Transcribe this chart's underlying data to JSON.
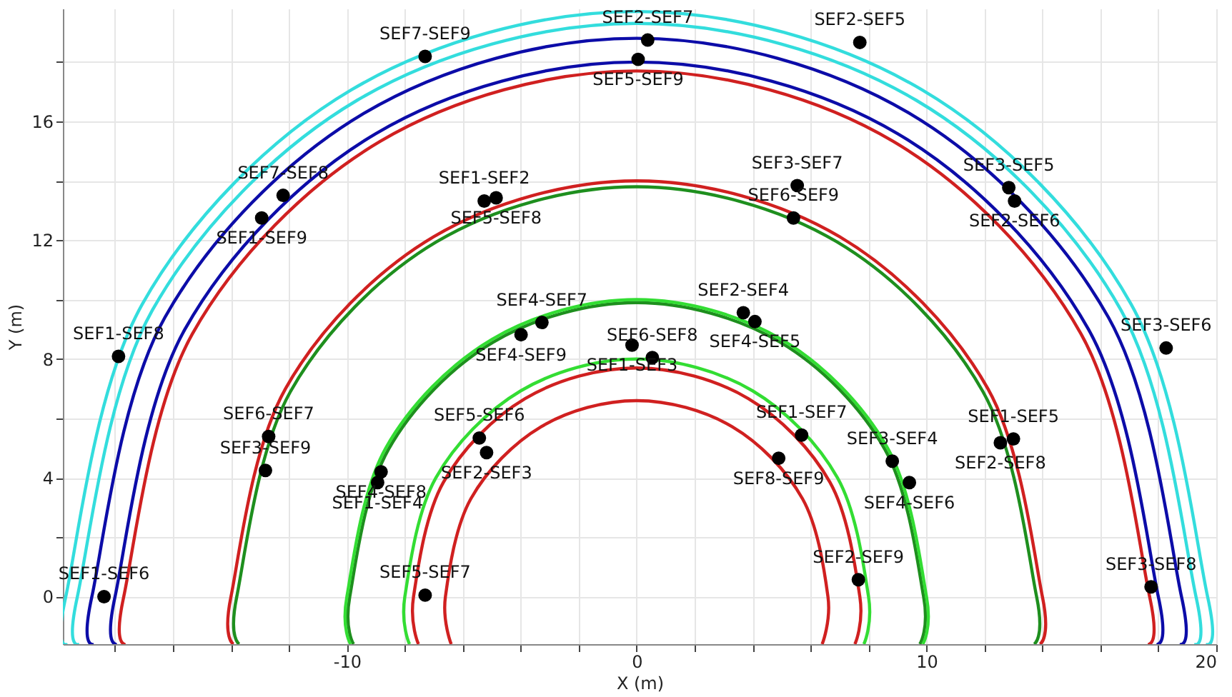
{
  "chart_data": {
    "type": "scatter",
    "xlabel": "X (m)",
    "ylabel": "Y (m)",
    "xlim": [
      -19.8,
      20
    ],
    "ylim": [
      -1.6,
      19.8
    ],
    "xticks": [
      {
        "value": -18,
        "label": null
      },
      {
        "value": -16,
        "label": null
      },
      {
        "value": -14,
        "label": null
      },
      {
        "value": -12,
        "label": null
      },
      -10,
      {
        "value": -8,
        "label": null
      },
      {
        "value": -6,
        "label": null
      },
      {
        "value": -4,
        "label": null
      },
      {
        "value": -2,
        "label": null
      },
      0,
      {
        "value": 2,
        "label": null
      },
      {
        "value": 4,
        "label": null
      },
      {
        "value": 6,
        "label": null
      },
      {
        "value": 8,
        "label": null
      },
      10,
      {
        "value": 12,
        "label": null
      },
      {
        "value": 14,
        "label": null
      },
      {
        "value": 16,
        "label": null
      },
      {
        "value": 18,
        "label": null
      },
      20
    ],
    "yticks": [
      0,
      {
        "value": 2,
        "label": null
      },
      4,
      {
        "value": 6,
        "label": null
      },
      8,
      {
        "value": 10,
        "label": null
      },
      12,
      {
        "value": 14,
        "label": null
      },
      16,
      {
        "value": 18,
        "label": null
      }
    ],
    "grid": true,
    "series": [
      {
        "type": "line",
        "color": "#d02020",
        "x": [
          6.4,
          6.6,
          5.72,
          3.3,
          0,
          -3.3,
          -5.72,
          -6.6,
          -6.4
        ],
        "values": [
          -1.6,
          0,
          3.3,
          5.72,
          6.6,
          5.72,
          3.3,
          0,
          -1.6
        ]
      },
      {
        "type": "line",
        "color": "#d02020",
        "x": [
          7.53,
          7.7,
          6.67,
          3.85,
          0,
          -3.85,
          -6.67,
          -7.7,
          -7.53
        ],
        "values": [
          -1.6,
          0,
          3.85,
          6.67,
          7.7,
          6.67,
          3.85,
          0,
          -1.6
        ]
      },
      {
        "type": "line",
        "color": "#33dd33",
        "x": [
          7.84,
          8.0,
          6.93,
          4.0,
          0,
          -4.0,
          -6.93,
          -8.0,
          -7.84
        ],
        "values": [
          -1.6,
          0,
          4.0,
          6.93,
          8.0,
          6.93,
          4.0,
          0,
          -1.6
        ]
      },
      {
        "type": "line",
        "color": "#1e8f1e",
        "x": [
          9.77,
          9.9,
          8.57,
          4.95,
          0,
          -4.95,
          -8.57,
          -9.9,
          -9.77
        ],
        "values": [
          -1.6,
          0,
          4.95,
          8.57,
          9.9,
          8.57,
          4.95,
          0,
          -1.6
        ]
      },
      {
        "type": "line",
        "color": "#33dd33",
        "x": [
          9.87,
          10.0,
          8.66,
          5.0,
          0,
          -5.0,
          -8.66,
          -10.0,
          -9.87
        ],
        "values": [
          -1.6,
          0,
          5.0,
          8.66,
          10.0,
          8.66,
          5.0,
          0,
          -1.6
        ]
      },
      {
        "type": "line",
        "color": "#1e8f1e",
        "x": [
          13.71,
          13.8,
          11.95,
          6.9,
          0,
          -6.9,
          -11.95,
          -13.8,
          -13.71
        ],
        "values": [
          -1.6,
          0,
          6.9,
          11.95,
          13.8,
          11.95,
          6.9,
          0,
          -1.6
        ]
      },
      {
        "type": "line",
        "color": "#d02020",
        "x": [
          13.91,
          14.0,
          12.12,
          7.0,
          0,
          -7.0,
          -12.12,
          -14.0,
          -13.91
        ],
        "values": [
          -1.6,
          0,
          7.0,
          12.12,
          14.0,
          12.12,
          7.0,
          0,
          -1.6
        ]
      },
      {
        "type": "line",
        "color": "#d02020",
        "x": [
          17.63,
          17.7,
          15.33,
          8.85,
          0,
          -8.85,
          -15.33,
          -17.7,
          -17.63
        ],
        "values": [
          -1.6,
          0,
          8.85,
          15.33,
          17.7,
          15.33,
          8.85,
          0,
          -1.6
        ]
      },
      {
        "type": "line",
        "color": "#0c0ca8",
        "x": [
          17.93,
          18.0,
          15.59,
          9.0,
          0,
          -9.0,
          -15.59,
          -18.0,
          -17.93
        ],
        "values": [
          -1.6,
          0,
          9.0,
          15.59,
          18.0,
          15.59,
          9.0,
          0,
          -1.6
        ]
      },
      {
        "type": "line",
        "color": "#0c0ca8",
        "x": [
          18.73,
          18.8,
          16.28,
          9.4,
          0,
          -9.4,
          -16.28,
          -18.8,
          -18.73
        ],
        "values": [
          -1.6,
          0,
          9.4,
          16.28,
          18.8,
          16.28,
          9.4,
          0,
          -1.6
        ]
      },
      {
        "type": "line",
        "color": "#33dddd",
        "x": [
          19.23,
          19.3,
          16.71,
          9.65,
          0,
          -9.65,
          -16.71,
          -19.3,
          -19.23
        ],
        "values": [
          -1.6,
          0,
          9.65,
          16.71,
          19.3,
          16.71,
          9.65,
          0,
          -1.6
        ]
      },
      {
        "type": "line",
        "color": "#33dddd",
        "x": [
          19.63,
          19.7,
          17.06,
          9.85,
          0,
          -9.85,
          -17.06,
          -19.7,
          -19.63
        ],
        "values": [
          -1.6,
          0,
          9.85,
          17.06,
          19.7,
          17.06,
          9.85,
          0,
          -1.6
        ]
      },
      {
        "color": "#000000",
        "marker": "circle",
        "x": [
          -7.3,
          0.38,
          0.05,
          7.7,
          -12.2,
          -12.94,
          -5.26,
          -4.85,
          5.54,
          5.41,
          12.84,
          13.04,
          -17.88,
          -3.27,
          -3.99,
          3.68,
          4.08,
          -0.16,
          0.54,
          -12.7,
          -12.81,
          -8.82,
          -8.94,
          -5.43,
          -5.18,
          -18.38,
          -7.3,
          5.69,
          4.9,
          8.82,
          9.41,
          7.65,
          13.0,
          12.55,
          17.75,
          18.27
        ],
        "values": [
          18.19,
          18.74,
          18.09,
          18.66,
          13.51,
          12.75,
          13.32,
          13.43,
          13.84,
          12.75,
          13.77,
          13.32,
          8.09,
          9.23,
          8.82,
          9.56,
          9.26,
          8.47,
          8.05,
          5.39,
          4.25,
          4.2,
          3.84,
          5.34,
          4.85,
          0.0,
          0.05,
          5.44,
          4.66,
          4.56,
          3.84,
          0.57,
          5.31,
          5.18,
          0.33,
          8.37
        ],
        "value_labels": [
          "SEF7-SEF9",
          "SEF2-SEF7",
          "SEF5-SEF9",
          "SEF2-SEF5",
          "SEF7-SEF8",
          "SEF1-SEF9",
          "SEF1-SEF2",
          "SEF5-SEF8",
          "SEF3-SEF7",
          "SEF6-SEF9",
          "SEF3-SEF5",
          "SEF2-SEF6",
          "SEF1-SEF8",
          "SEF4-SEF7",
          "SEF4-SEF9",
          "SEF2-SEF4",
          "SEF4-SEF5",
          "SEF1-SEF3",
          "SEF6-SEF8",
          "SEF6-SEF7",
          "SEF3-SEF9",
          "SEF4-SEF8",
          "SEF1-SEF4",
          "SEF5-SEF6",
          "SEF2-SEF3",
          "SEF1-SEF6",
          "SEF5-SEF7",
          "SEF1-SEF7",
          "SEF8-SEF9",
          "SEF3-SEF4",
          "SEF4-SEF6",
          "SEF2-SEF9",
          "SEF1-SEF5",
          "SEF2-SEF8",
          "SEF3-SEF8",
          "SEF3-SEF6"
        ]
      }
    ]
  }
}
